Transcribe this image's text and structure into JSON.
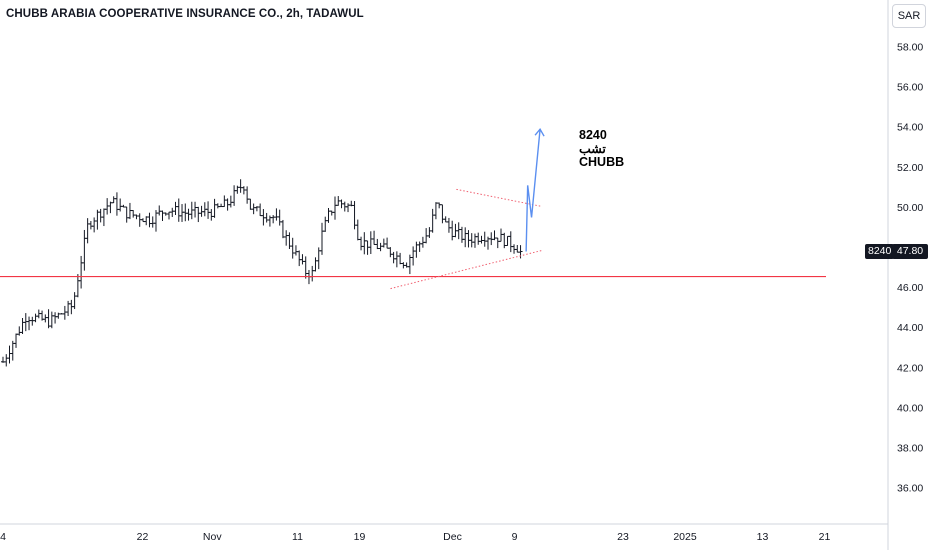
{
  "header": {
    "title": "CHUBB ARABIA COOPERATIVE INSURANCE CO., 2h, TADAWUL",
    "currency": "SAR"
  },
  "annotation": {
    "lines": [
      "8240",
      "تشب",
      "CHUBB"
    ]
  },
  "price_tag": {
    "symbol": "8240",
    "value": "47.80"
  },
  "colors": {
    "candle": "#131722",
    "support_line": "#f23645",
    "triangle": "#f06070",
    "projection": "#5b8ff0",
    "axis": "#d1d4dc"
  },
  "chart_data": {
    "type": "bar",
    "style": "ohlc",
    "title": "CHUBB ARABIA COOPERATIVE INSURANCE CO., 2h, TADAWUL",
    "xlabel": "",
    "ylabel": "",
    "x_tick_labels": [
      {
        "label": "4",
        "x": 0
      },
      {
        "label": "22",
        "x": 18
      },
      {
        "label": "Nov",
        "x": 27
      },
      {
        "label": "11",
        "x": 38
      },
      {
        "label": "19",
        "x": 46
      },
      {
        "label": "Dec",
        "x": 58
      },
      {
        "label": "9",
        "x": 66
      },
      {
        "label": "23",
        "x": 80
      },
      {
        "label": "2025",
        "x": 88
      },
      {
        "label": "13",
        "x": 98
      },
      {
        "label": "21",
        "x": 106
      }
    ],
    "y_ticks": [
      36.0,
      38.0,
      40.0,
      42.0,
      44.0,
      46.0,
      48.0,
      50.0,
      52.0,
      54.0,
      56.0,
      58.0
    ],
    "ylim": [
      34.4,
      59.7
    ],
    "xlim": [
      0,
      109
    ],
    "key_points": [
      [
        0,
        42.3
      ],
      [
        3,
        44.6
      ],
      [
        6,
        44.3
      ],
      [
        9,
        45.1
      ],
      [
        10,
        47.2
      ],
      [
        11,
        49.2
      ],
      [
        14,
        50.3
      ],
      [
        16,
        49.7
      ],
      [
        19,
        49.4
      ],
      [
        21,
        49.9
      ],
      [
        24,
        49.7
      ],
      [
        27,
        49.8
      ],
      [
        29,
        50.2
      ],
      [
        31,
        51.2
      ],
      [
        32,
        49.9
      ],
      [
        35,
        49.5
      ],
      [
        38,
        47.5
      ],
      [
        39,
        46.8
      ],
      [
        40,
        46.7
      ],
      [
        41,
        48.5
      ],
      [
        42,
        49.6
      ],
      [
        43,
        50.3
      ],
      [
        45,
        50.0
      ],
      [
        46,
        48.3
      ],
      [
        48,
        48.1
      ],
      [
        50,
        47.8
      ],
      [
        52,
        47.2
      ],
      [
        53,
        47.9
      ],
      [
        54,
        48.3
      ],
      [
        55,
        48.8
      ],
      [
        56,
        50.3
      ],
      [
        57,
        49.2
      ],
      [
        58,
        48.8
      ],
      [
        60,
        48.4
      ],
      [
        62,
        48.6
      ],
      [
        64,
        48.5
      ],
      [
        66,
        48.1
      ],
      [
        67,
        47.8
      ]
    ],
    "support_level": 46.55,
    "triangle_upper": [
      [
        58.5,
        50.9
      ],
      [
        69.5,
        50.05
      ]
    ],
    "triangle_lower": [
      [
        50,
        45.95
      ],
      [
        69.5,
        47.85
      ]
    ],
    "projection": [
      [
        67.5,
        47.8
      ],
      [
        67.7,
        51.1
      ],
      [
        68.2,
        49.5
      ],
      [
        69.3,
        53.9
      ]
    ],
    "last_price": 47.8
  }
}
